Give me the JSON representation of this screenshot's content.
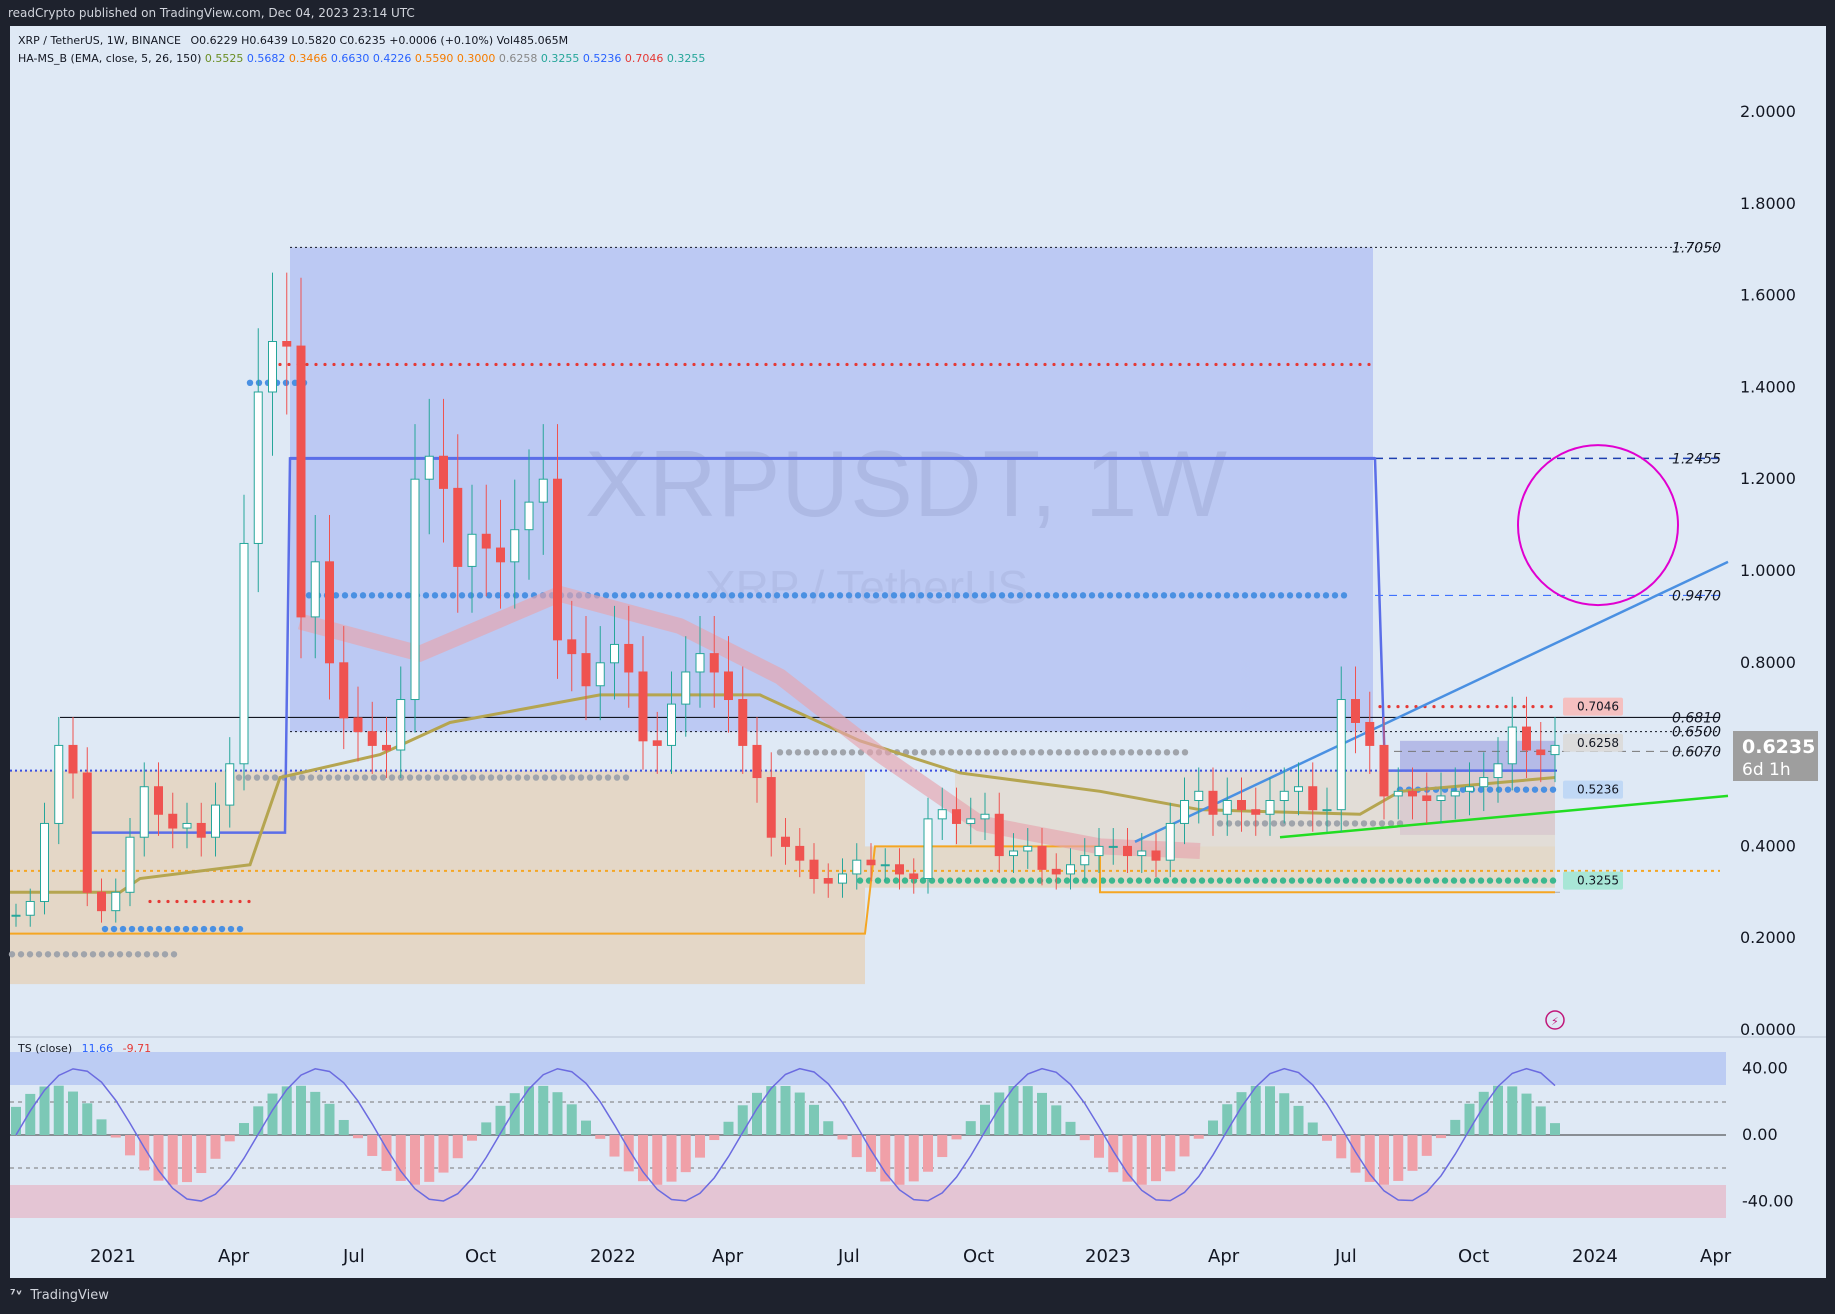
{
  "header": {
    "published": "readCrypto published on TradingView.com, Dec 04, 2023 23:14 UTC"
  },
  "legend": {
    "symbol": "XRP / TetherUS, 1W, BINANCE",
    "ohlc": "O0.6229 H0.6439 L0.5820 C0.6235 +0.0006 (+0.10%) Vol485.065M",
    "indicator_name": "HA-MS_B (EMA, close, 5, 26, 150)",
    "indicator_values": [
      {
        "text": "0.5525",
        "color": "#6b8e23"
      },
      {
        "text": "0.5682",
        "color": "#2962ff"
      },
      {
        "text": "0.3466",
        "color": "#f57c00"
      },
      {
        "text": "0.6630",
        "color": "#2962ff"
      },
      {
        "text": "0.4226",
        "color": "#2962ff"
      },
      {
        "text": "0.5590",
        "color": "#f57c00"
      },
      {
        "text": "0.3000",
        "color": "#f57c00"
      },
      {
        "text": "0.6258",
        "color": "#888888"
      },
      {
        "text": "0.3255",
        "color": "#26a69a"
      },
      {
        "text": "0.5236",
        "color": "#2962ff"
      },
      {
        "text": "0.7046",
        "color": "#e53935"
      },
      {
        "text": "0.3255",
        "color": "#26a69a"
      }
    ],
    "ts_name": "TS (close)",
    "ts_val1": "11.66",
    "ts_val2": "-9.71"
  },
  "watermark": {
    "line1": "XRPUSDT, 1W",
    "line2": "XRP / TetherUS"
  },
  "footer": {
    "brand": "TradingView"
  },
  "price_axis": {
    "ticks": [
      "2.0000",
      "1.8000",
      "1.6000",
      "1.4000",
      "1.2000",
      "1.0000",
      "0.8000",
      "0.4000",
      "0.2000",
      "0.0000"
    ],
    "current_price": "0.6235",
    "countdown": "6d 1h"
  },
  "osc_axis": {
    "ticks": [
      "40.00",
      "0.00",
      "-40.00"
    ]
  },
  "time_axis": {
    "ticks": [
      "2021",
      "Apr",
      "Jul",
      "Oct",
      "2022",
      "Apr",
      "Jul",
      "Oct",
      "2023",
      "Apr",
      "Jul",
      "Oct",
      "2024",
      "Apr"
    ]
  },
  "level_labels": [
    "1.7050",
    "1.2455",
    "0.9470",
    "0.6810",
    "0.6500",
    "0.6070"
  ],
  "badges": [
    "0.7046",
    "0.6258",
    "0.5236",
    "0.3255"
  ],
  "colors": {
    "up": "#26a69a",
    "down": "#ef5350",
    "bg": "#dfe9f5",
    "zone_blue": "#8c9ef0",
    "zone_tan": "#e8c9a0",
    "circle": "#e000d0"
  },
  "chart_data": {
    "type": "candlestick",
    "title": "XRPUSDT, 1W",
    "subtitle": "XRP / TetherUS",
    "ylim": [
      0,
      2.1
    ],
    "weekly_closes": [
      0.25,
      0.28,
      0.45,
      0.62,
      0.56,
      0.3,
      0.26,
      0.3,
      0.42,
      0.53,
      0.47,
      0.44,
      0.45,
      0.42,
      0.49,
      0.58,
      1.06,
      1.39,
      1.5,
      1.49,
      0.9,
      1.02,
      0.8,
      0.68,
      0.65,
      0.62,
      0.61,
      0.72,
      1.2,
      1.25,
      1.18,
      1.01,
      1.08,
      1.05,
      1.02,
      1.09,
      1.15,
      1.2,
      0.85,
      0.82,
      0.75,
      0.8,
      0.84,
      0.78,
      0.63,
      0.62,
      0.71,
      0.78,
      0.82,
      0.78,
      0.72,
      0.62,
      0.55,
      0.42,
      0.4,
      0.37,
      0.33,
      0.32,
      0.34,
      0.37,
      0.36,
      0.36,
      0.34,
      0.33,
      0.46,
      0.48,
      0.45,
      0.46,
      0.47,
      0.38,
      0.39,
      0.4,
      0.35,
      0.34,
      0.36,
      0.38,
      0.4,
      0.4,
      0.38,
      0.39,
      0.37,
      0.45,
      0.5,
      0.52,
      0.47,
      0.5,
      0.48,
      0.47,
      0.5,
      0.52,
      0.53,
      0.48,
      0.48,
      0.72,
      0.67,
      0.62,
      0.51,
      0.52,
      0.51,
      0.5,
      0.51,
      0.52,
      0.53,
      0.55,
      0.58,
      0.66,
      0.61,
      0.6,
      0.62
    ]
  }
}
